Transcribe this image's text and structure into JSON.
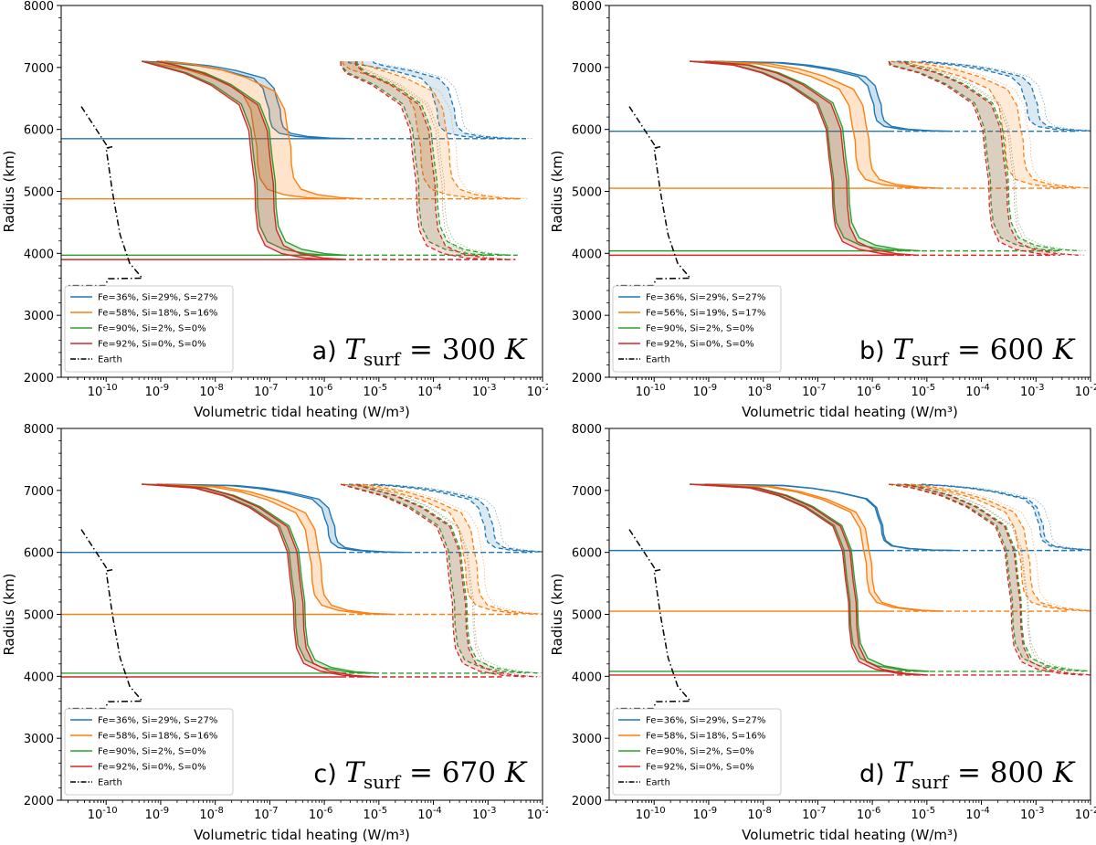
{
  "chart_data": [
    {
      "type": "line",
      "panel_letter": "a)",
      "title_var": "T",
      "title_sub": "surf",
      "title_value": "= 300",
      "title_unit": "K",
      "xlabel": "Volumetric tidal heating (W/m³)",
      "ylabel": "Radius (km)",
      "xscale": "log",
      "xlim": [
        1.5e-11,
        0.01
      ],
      "ylim": [
        2000,
        8000
      ],
      "yticks": [
        "2000",
        "3000",
        "4000",
        "5000",
        "6000",
        "7000",
        "8000"
      ],
      "xticks": [
        {
          "base": "10",
          "exp": "-10"
        },
        {
          "base": "10",
          "exp": "-9"
        },
        {
          "base": "10",
          "exp": "-8"
        },
        {
          "base": "10",
          "exp": "-7"
        },
        {
          "base": "10",
          "exp": "-6"
        },
        {
          "base": "10",
          "exp": "-5"
        },
        {
          "base": "10",
          "exp": "-4"
        },
        {
          "base": "10",
          "exp": "-3"
        },
        {
          "base": "10",
          "exp": "-2"
        }
      ],
      "legend_position": "lower-left",
      "surface_radius": 7100,
      "series": [
        {
          "name": "Fe=36%, Si=29%, S=27%",
          "color": "#1f77b4",
          "core_radius": 5850,
          "flat_low": [
            1e-07,
            1.6e-07
          ],
          "flat_high": [
            0.00012,
            0.00025
          ],
          "xmax": 0.0045,
          "hs_low": [
            4.5e-10,
            1.2e-09
          ],
          "hs_high": [
            2.8e-06,
            8e-06
          ]
        },
        {
          "name": "Fe=58%, Si=18%, S=16%",
          "color": "#ff7f0e",
          "core_radius": 4880,
          "flat_low": [
            6e-08,
            2.5e-07
          ],
          "flat_high": [
            6e-05,
            0.0002
          ],
          "xmax": 0.004,
          "hs_low": [
            4.5e-10,
            1e-09
          ],
          "hs_high": [
            2.2e-06,
            5e-06
          ]
        },
        {
          "name": "Fe=90%, Si=2%, S=0%",
          "color": "#2ca02c",
          "core_radius": 3970,
          "flat_low": [
            6e-08,
            1.3e-07
          ],
          "flat_high": [
            5.5e-05,
            0.00012
          ],
          "xmax": 0.0035,
          "hs_low": [
            4.5e-10,
            9e-10
          ],
          "hs_high": [
            2e-06,
            4e-06
          ]
        },
        {
          "name": "Fe=92%, Si=0%, S=0%",
          "color": "#d62728",
          "core_radius": 3900,
          "flat_low": [
            5.5e-08,
            1.2e-07
          ],
          "flat_high": [
            5e-05,
            0.00011
          ],
          "xmax": 0.0032,
          "hs_low": [
            4.5e-10,
            8.5e-10
          ],
          "hs_high": [
            2e-06,
            3.8e-06
          ]
        }
      ],
      "earth": {
        "name": "Earth",
        "color": "#000000"
      }
    },
    {
      "type": "line",
      "panel_letter": "b)",
      "title_var": "T",
      "title_sub": "surf",
      "title_value": "= 600",
      "title_unit": "K",
      "xlabel": "Volumetric tidal heating (W/m³)",
      "ylabel": "Radius (km)",
      "xscale": "log",
      "xlim": [
        1.5e-11,
        0.01
      ],
      "ylim": [
        2000,
        8000
      ],
      "yticks": [
        "2000",
        "3000",
        "4000",
        "5000",
        "6000",
        "7000",
        "8000"
      ],
      "xticks": [
        {
          "base": "10",
          "exp": "-10"
        },
        {
          "base": "10",
          "exp": "-9"
        },
        {
          "base": "10",
          "exp": "-8"
        },
        {
          "base": "10",
          "exp": "-7"
        },
        {
          "base": "10",
          "exp": "-6"
        },
        {
          "base": "10",
          "exp": "-5"
        },
        {
          "base": "10",
          "exp": "-4"
        },
        {
          "base": "10",
          "exp": "-3"
        },
        {
          "base": "10",
          "exp": "-2"
        }
      ],
      "legend_position": "lower-left",
      "surface_radius": 7100,
      "series": [
        {
          "name": "Fe=36%, Si=29%, S=27%",
          "color": "#1f77b4",
          "core_radius": 5970,
          "flat_low": [
            1.1e-06,
            1.5e-06
          ],
          "flat_high": [
            0.0007,
            0.0011
          ],
          "xmax": 0.006,
          "hs_low": [
            4.5e-10,
            1.2e-09
          ],
          "hs_high": [
            2.8e-06,
            8e-06
          ]
        },
        {
          "name": "Fe=56%, Si=19%, S=17%",
          "color": "#ff7f0e",
          "core_radius": 5050,
          "flat_low": [
            5e-07,
            9e-07
          ],
          "flat_high": [
            0.00028,
            0.0006
          ],
          "xmax": 0.0032,
          "hs_low": [
            4.5e-10,
            1e-09
          ],
          "hs_high": [
            2.2e-06,
            5e-06
          ]
        },
        {
          "name": "Fe=90%, Si=2%, S=0%",
          "color": "#2ca02c",
          "core_radius": 4040,
          "flat_low": [
            2e-07,
            3.8e-07
          ],
          "flat_high": [
            0.00015,
            0.00032
          ],
          "xmax": 0.0025,
          "hs_low": [
            4.5e-10,
            9e-10
          ],
          "hs_high": [
            2e-06,
            4e-06
          ]
        },
        {
          "name": "Fe=92%, Si=0%, S=0%",
          "color": "#d62728",
          "core_radius": 3970,
          "flat_low": [
            1.9e-07,
            3.5e-07
          ],
          "flat_high": [
            0.00014,
            0.0003
          ],
          "xmax": 0.0022,
          "hs_low": [
            4.5e-10,
            8.5e-10
          ],
          "hs_high": [
            2e-06,
            3.8e-06
          ]
        }
      ],
      "earth": {
        "name": "Earth",
        "color": "#000000"
      }
    },
    {
      "type": "line",
      "panel_letter": "c)",
      "title_var": "T",
      "title_sub": "surf",
      "title_value": "= 670",
      "title_unit": "K",
      "xlabel": "Volumetric tidal heating (W/m³)",
      "ylabel": "Radius (km)",
      "xscale": "log",
      "xlim": [
        1.5e-11,
        0.01
      ],
      "ylim": [
        2000,
        8000
      ],
      "yticks": [
        "2000",
        "3000",
        "4000",
        "5000",
        "6000",
        "7000",
        "8000"
      ],
      "xticks": [
        {
          "base": "10",
          "exp": "-10"
        },
        {
          "base": "10",
          "exp": "-9"
        },
        {
          "base": "10",
          "exp": "-8"
        },
        {
          "base": "10",
          "exp": "-7"
        },
        {
          "base": "10",
          "exp": "-6"
        },
        {
          "base": "10",
          "exp": "-5"
        },
        {
          "base": "10",
          "exp": "-4"
        },
        {
          "base": "10",
          "exp": "-3"
        },
        {
          "base": "10",
          "exp": "-2"
        }
      ],
      "legend_position": "lower-left",
      "surface_radius": 7100,
      "series": [
        {
          "name": "Fe=36%, Si=29%, S=27%",
          "color": "#1f77b4",
          "core_radius": 6000,
          "flat_low": [
            1.2e-06,
            1.6e-06
          ],
          "flat_high": [
            0.0009,
            0.0013
          ],
          "xmax": 0.0065,
          "hs_low": [
            4.5e-10,
            1.2e-09
          ],
          "hs_high": [
            2.8e-06,
            8e-06
          ]
        },
        {
          "name": "Fe=58%, Si=18%, S=16%",
          "color": "#ff7f0e",
          "core_radius": 5000,
          "flat_low": [
            6e-07,
            9e-07
          ],
          "flat_high": [
            0.0004,
            0.00065
          ],
          "xmax": 0.0035,
          "hs_low": [
            4.5e-10,
            1e-09
          ],
          "hs_high": [
            2.2e-06,
            5e-06
          ]
        },
        {
          "name": "Fe=90%, Si=2%, S=0%",
          "color": "#2ca02c",
          "core_radius": 4050,
          "flat_low": [
            3e-07,
            4.5e-07
          ],
          "flat_high": [
            0.00025,
            0.00042
          ],
          "xmax": 0.002,
          "hs_low": [
            4.5e-10,
            9e-10
          ],
          "hs_high": [
            2e-06,
            4e-06
          ]
        },
        {
          "name": "Fe=92%, Si=0%, S=0%",
          "color": "#d62728",
          "core_radius": 3990,
          "flat_low": [
            2.8e-07,
            4.2e-07
          ],
          "flat_high": [
            0.00023,
            0.0004
          ],
          "xmax": 0.0018,
          "hs_low": [
            4.5e-10,
            8.5e-10
          ],
          "hs_high": [
            2e-06,
            3.8e-06
          ]
        }
      ],
      "earth": {
        "name": "Earth",
        "color": "#000000"
      }
    },
    {
      "type": "line",
      "panel_letter": "d)",
      "title_var": "T",
      "title_sub": "surf",
      "title_value": "= 800",
      "title_unit": "K",
      "xlabel": "Volumetric tidal heating (W/m³)",
      "ylabel": "Radius (km)",
      "xscale": "log",
      "xlim": [
        1.5e-11,
        0.01
      ],
      "ylim": [
        2000,
        8000
      ],
      "yticks": [
        "2000",
        "3000",
        "4000",
        "5000",
        "6000",
        "7000",
        "8000"
      ],
      "xticks": [
        {
          "base": "10",
          "exp": "-10"
        },
        {
          "base": "10",
          "exp": "-9"
        },
        {
          "base": "10",
          "exp": "-8"
        },
        {
          "base": "10",
          "exp": "-7"
        },
        {
          "base": "10",
          "exp": "-6"
        },
        {
          "base": "10",
          "exp": "-5"
        },
        {
          "base": "10",
          "exp": "-4"
        },
        {
          "base": "10",
          "exp": "-3"
        },
        {
          "base": "10",
          "exp": "-2"
        }
      ],
      "legend_position": "lower-left",
      "surface_radius": 7100,
      "series": [
        {
          "name": "Fe=36%, Si=29%, S=27%",
          "color": "#1f77b4",
          "core_radius": 6030,
          "flat_low": [
            1.5e-06,
            1.6e-06
          ],
          "flat_high": [
            0.0012,
            0.0014
          ],
          "xmax": 0.007,
          "hs_low": [
            4.5e-10,
            1.2e-09
          ],
          "hs_high": [
            2.8e-06,
            8e-06
          ]
        },
        {
          "name": "Fe=58%, Si=18%, S=16%",
          "color": "#ff7f0e",
          "core_radius": 5050,
          "flat_low": [
            8e-07,
            1e-06
          ],
          "flat_high": [
            0.00055,
            0.0008
          ],
          "xmax": 0.0038,
          "hs_low": [
            4.5e-10,
            1e-09
          ],
          "hs_high": [
            2.2e-06,
            5e-06
          ]
        },
        {
          "name": "Fe=90%, Si=2%, S=0%",
          "color": "#2ca02c",
          "core_radius": 4080,
          "flat_low": [
            4e-07,
            5.5e-07
          ],
          "flat_high": [
            0.00038,
            0.00055
          ],
          "xmax": 0.0019,
          "hs_low": [
            4.5e-10,
            9e-10
          ],
          "hs_high": [
            2e-06,
            4e-06
          ]
        },
        {
          "name": "Fe=92%, Si=0%, S=0%",
          "color": "#d62728",
          "core_radius": 4020,
          "flat_low": [
            3.8e-07,
            5.2e-07
          ],
          "flat_high": [
            0.00036,
            0.00053
          ],
          "xmax": 0.0018,
          "hs_low": [
            4.5e-10,
            8.5e-10
          ],
          "hs_high": [
            2e-06,
            3.8e-06
          ]
        }
      ],
      "earth": {
        "name": "Earth",
        "color": "#000000"
      }
    }
  ]
}
